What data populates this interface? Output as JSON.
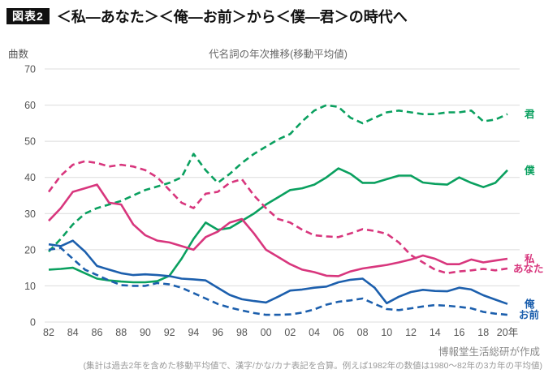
{
  "header": {
    "badge": "図表2",
    "title": "＜私―あなた＞＜俺―お前＞から＜僕―君＞の時代へ"
  },
  "chart_data": {
    "type": "line",
    "title": "代名詞の年次推移(移動平均値)",
    "ylabel": "曲数",
    "xlabel": "年",
    "ylim": [
      0,
      70
    ],
    "y_ticks": [
      0,
      10,
      20,
      30,
      40,
      50,
      60,
      70
    ],
    "grid": true,
    "legend_position": "right-end-labels",
    "x_start_year": 1982,
    "x_end_year": 2020,
    "x_tick_step_years": 2,
    "x_tick_labels": [
      "82",
      "84",
      "86",
      "88",
      "90",
      "92",
      "94",
      "96",
      "98",
      "00",
      "02",
      "04",
      "06",
      "08",
      "10",
      "12",
      "14",
      "16",
      "18",
      "20年"
    ],
    "series": [
      {
        "name": "君",
        "color": "#0aa05f",
        "style": "dashed",
        "values": [
          19.5,
          23,
          27,
          30,
          31.5,
          32.5,
          33.5,
          35,
          36.5,
          37.5,
          38.5,
          40,
          46.5,
          42,
          38.5,
          41,
          44,
          46.5,
          48.5,
          50.5,
          52,
          55.5,
          58.5,
          60,
          59.5,
          56.5,
          55,
          56.5,
          58,
          58.5,
          58,
          57.5,
          57.5,
          58,
          58,
          58.5,
          55.5,
          56,
          57.5
        ]
      },
      {
        "name": "僕",
        "color": "#0aa05f",
        "style": "solid",
        "values": [
          14.5,
          14.7,
          15,
          13.5,
          12,
          11.5,
          11.2,
          11,
          11,
          11.3,
          12.8,
          17.5,
          23,
          27.5,
          25.5,
          26,
          28,
          30,
          32.5,
          34.5,
          36.5,
          37,
          38,
          40,
          42.5,
          41,
          38.5,
          38.5,
          39.5,
          40.5,
          40.5,
          38.6,
          38.2,
          38,
          40,
          38.5,
          37.3,
          38.5,
          42
        ]
      },
      {
        "name": "私",
        "color": "#d8367d",
        "style": "solid",
        "values": [
          28,
          31.5,
          36,
          37,
          38,
          33,
          32.5,
          27,
          24,
          22.5,
          22,
          21,
          20,
          23.5,
          25,
          27.5,
          28.5,
          24.5,
          20,
          18,
          16,
          14.5,
          13.8,
          12.8,
          12.7,
          14,
          14.8,
          15.3,
          15.8,
          16.5,
          17.3,
          18.4,
          17.5,
          16,
          16,
          17.3,
          16.5,
          17,
          17.5
        ]
      },
      {
        "name": "あなた",
        "color": "#d8367d",
        "style": "dashed",
        "values": [
          36,
          40.5,
          43.5,
          44.5,
          44,
          43,
          43.5,
          43,
          42,
          40,
          36.5,
          33,
          31.5,
          35.5,
          36,
          38.5,
          39.5,
          35,
          31.5,
          28.5,
          27.5,
          25.5,
          24,
          23.7,
          23.5,
          24.5,
          25.7,
          25.2,
          24.4,
          22,
          18.5,
          16.5,
          14.5,
          13.5,
          14,
          14.3,
          14.7,
          14.3,
          14.8
        ]
      },
      {
        "name": "俺",
        "color": "#1c5fad",
        "style": "solid",
        "values": [
          21.5,
          21,
          22.5,
          19.5,
          15.5,
          14.5,
          13.5,
          13,
          13.2,
          13,
          12.7,
          12,
          11.8,
          11.5,
          9.5,
          7.5,
          6.3,
          5.8,
          5.4,
          7,
          8.7,
          9,
          9.5,
          9.8,
          11,
          11.7,
          12,
          9.5,
          5.2,
          7,
          8.3,
          8.9,
          8.6,
          8.5,
          9.5,
          9,
          7.4,
          6.2,
          5
        ]
      },
      {
        "name": "お前",
        "color": "#1c5fad",
        "style": "dashed",
        "values": [
          20,
          20.5,
          17.5,
          14.5,
          13,
          11.5,
          10.2,
          10,
          10,
          10.8,
          10.4,
          9.5,
          8,
          6.5,
          5,
          4,
          3.2,
          2.5,
          2,
          2,
          2.1,
          2.6,
          3.5,
          4.8,
          5.6,
          6,
          6.5,
          5,
          3.6,
          3.3,
          3.8,
          4.3,
          4.7,
          4.5,
          4.2,
          3.8,
          2.8,
          2.3,
          2
        ]
      }
    ]
  },
  "footer": {
    "credit": "博報堂生活総研が作成",
    "note": "(集計は過去2年を含めた移動平均値で、漢字/かな/カナ表記を合算。例えば1982年の数値は1980〜82年の3カ年の平均値)"
  }
}
